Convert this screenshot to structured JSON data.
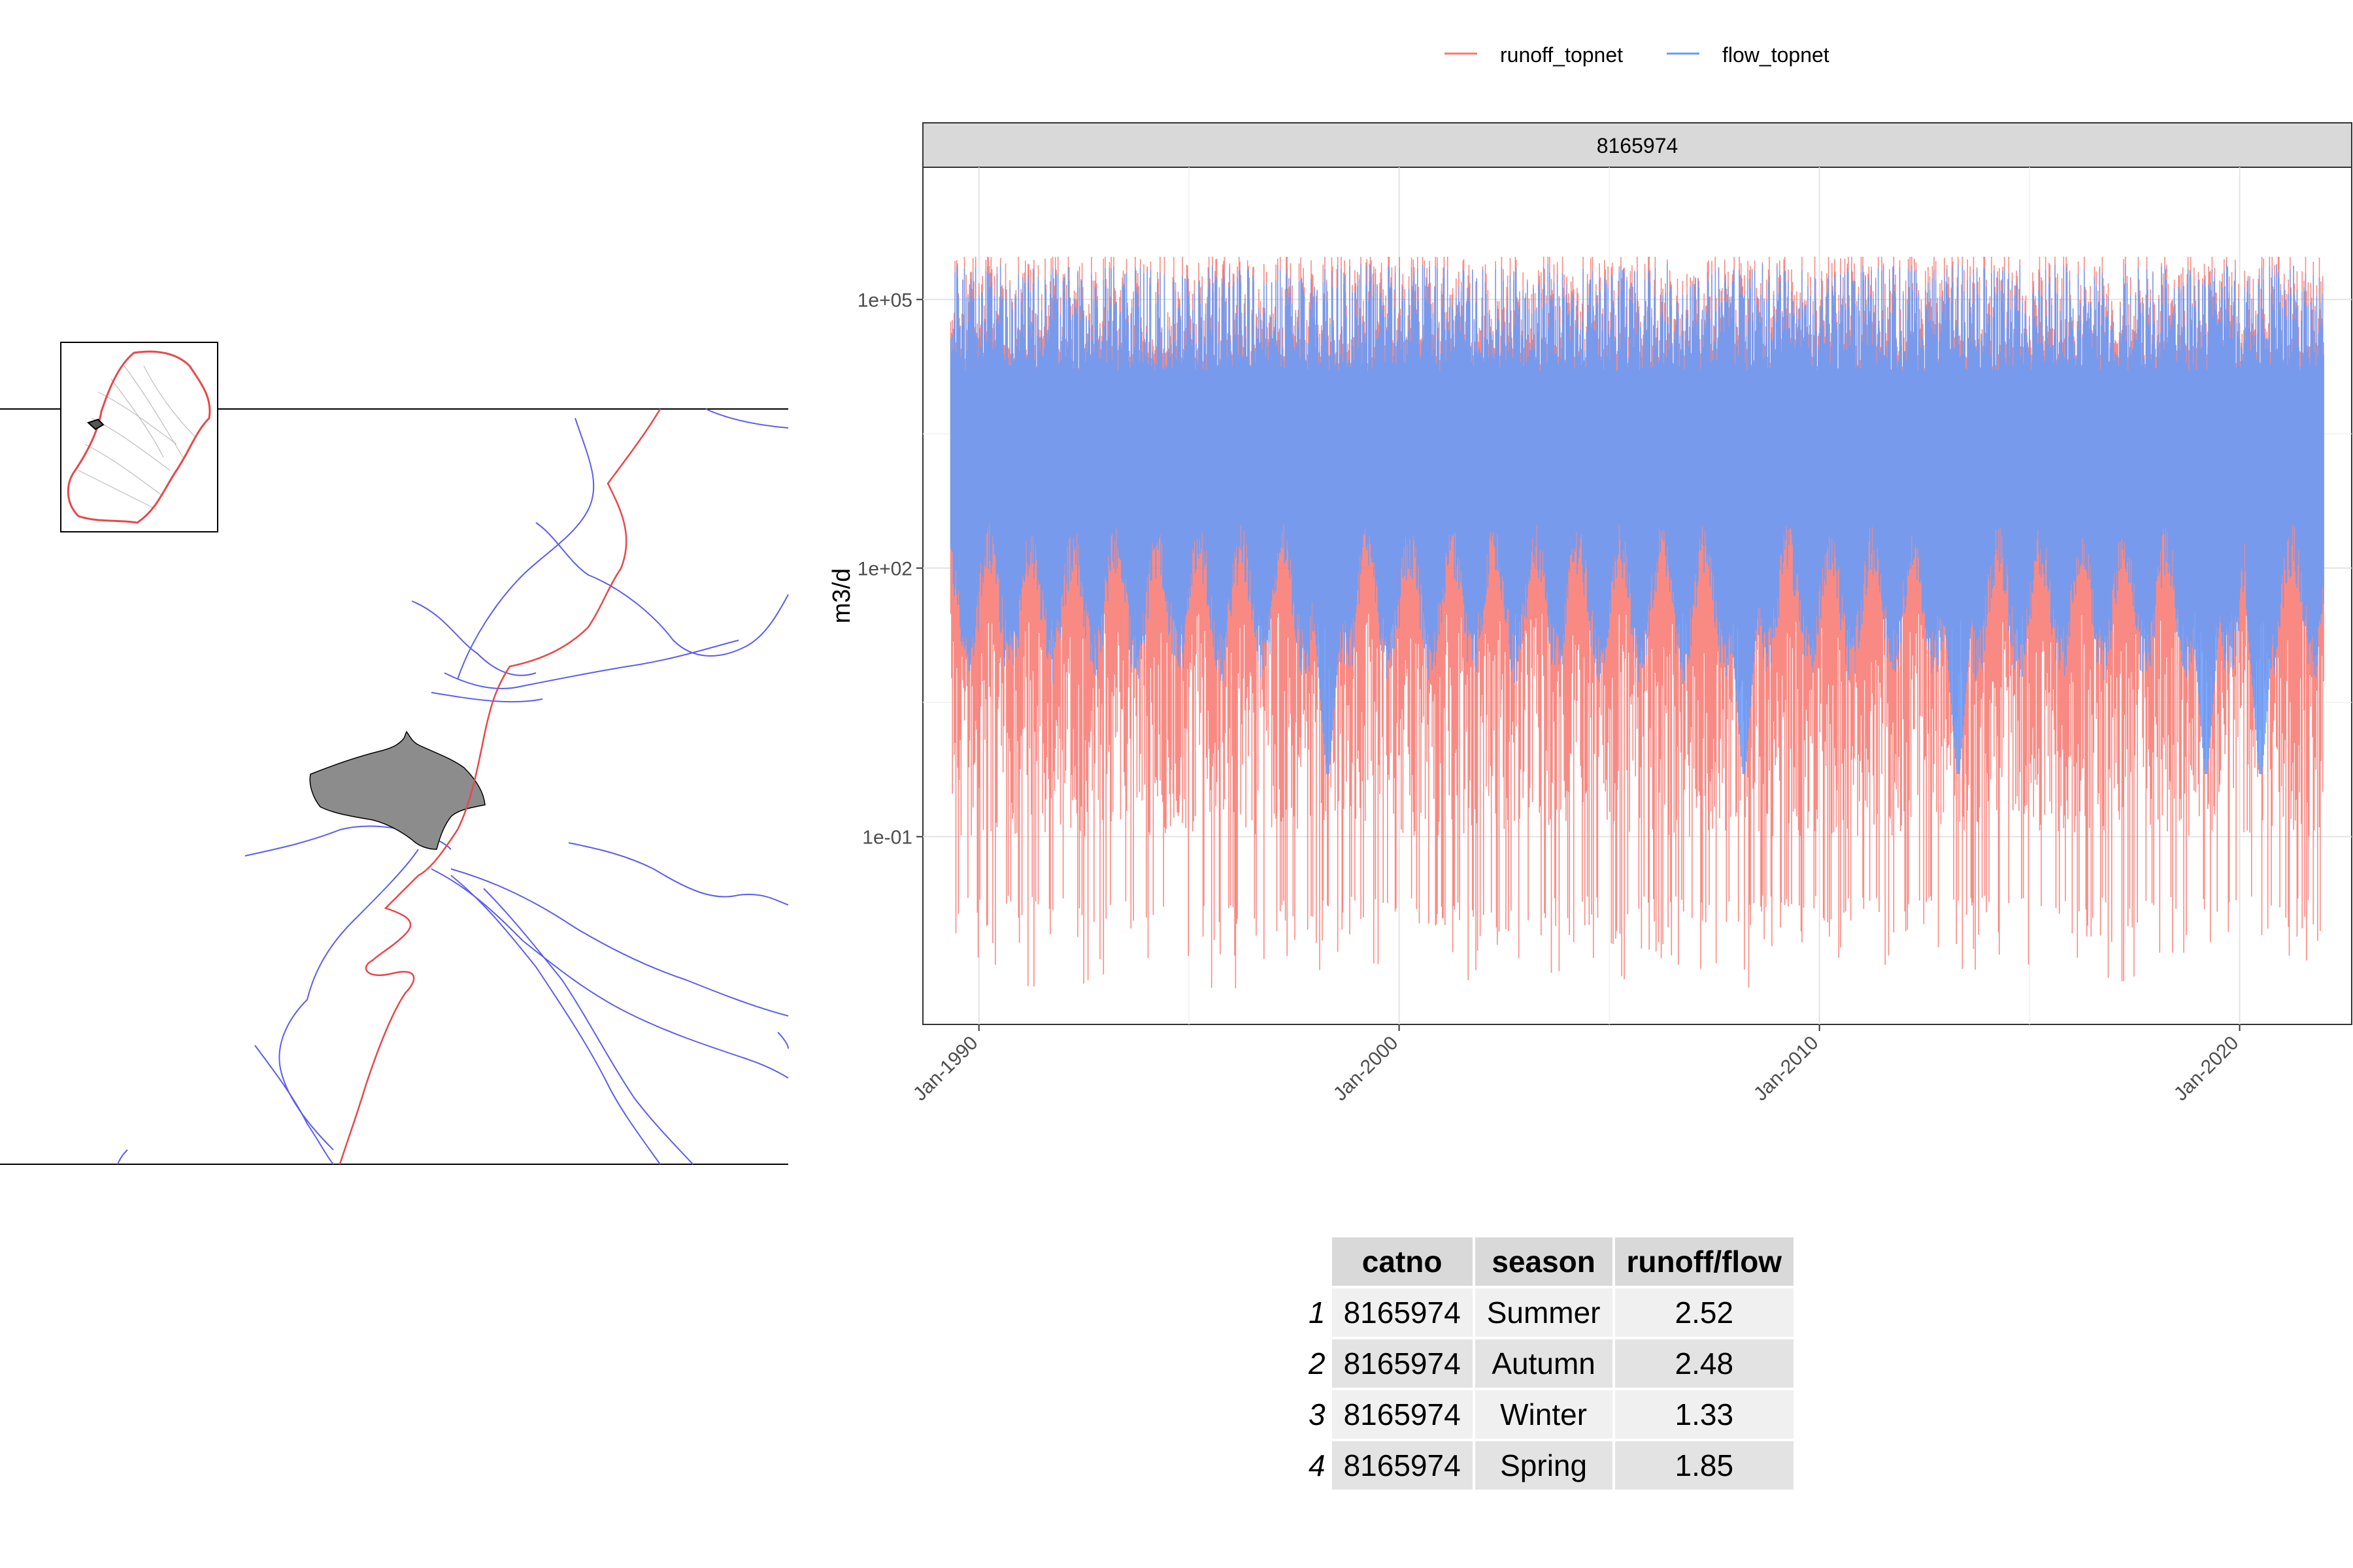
{
  "chart_data": {
    "type": "line",
    "facet_label": "8165974",
    "xlabel": "",
    "ylabel": "m3/d",
    "y_scale": "log10",
    "ylim": [
      0.0008,
      3000000
    ],
    "xlim": [
      "1988-09-01",
      "2022-09-01"
    ],
    "y_ticks": [
      {
        "value": 0.1,
        "label": "1e-01"
      },
      {
        "value": 100,
        "label": "1e+02"
      },
      {
        "value": 100000,
        "label": "1e+05"
      }
    ],
    "x_ticks": [
      {
        "value": "1990-01-01",
        "label": "Jan-1990"
      },
      {
        "value": "2000-01-01",
        "label": "Jan-2000"
      },
      {
        "value": "2010-01-01",
        "label": "Jan-2010"
      },
      {
        "value": "2020-01-01",
        "label": "Jan-2020"
      }
    ],
    "x_range_data": [
      "1989-05-01",
      "2021-12-31"
    ],
    "grid": true,
    "legend_position": "top",
    "series": [
      {
        "name": "runoff_topnet",
        "color": "#F8766D",
        "approx_max": 300000,
        "approx_min": 0.002,
        "typical_peak": 100000,
        "typical_base": 0.01
      },
      {
        "name": "flow_topnet",
        "color": "#619CFF",
        "approx_max": 400000,
        "approx_min": 0.5,
        "typical_peak": 100000,
        "typical_base": 10
      }
    ]
  },
  "table": {
    "columns": [
      "catno",
      "season",
      "runoff/flow"
    ],
    "rows": [
      {
        "idx": "1",
        "catno": "8165974",
        "season": "Summer",
        "ratio": "2.52"
      },
      {
        "idx": "2",
        "catno": "8165974",
        "season": "Autumn",
        "ratio": "2.48"
      },
      {
        "idx": "3",
        "catno": "8165974",
        "season": "Winter",
        "ratio": "1.33"
      },
      {
        "idx": "4",
        "catno": "8165974",
        "season": "Spring",
        "ratio": "1.85"
      }
    ]
  },
  "map": {
    "colors": {
      "catchment_fill": "#8c8c8c",
      "boundary": "#e8474a",
      "rivers": "#5c5cf0",
      "inset_lines": "#bdbdbd"
    }
  }
}
